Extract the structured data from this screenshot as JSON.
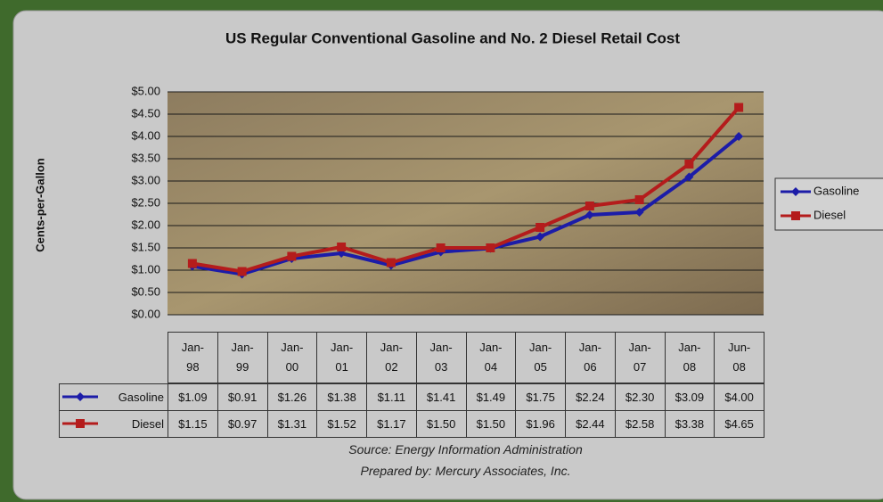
{
  "chart_data": {
    "type": "line",
    "title": "US Regular Conventional Gasoline and No. 2 Diesel Retail Cost",
    "y_label": "Cents-per-Gallon",
    "categories": [
      "Jan-98",
      "Jan-99",
      "Jan-00",
      "Jan-01",
      "Jan-02",
      "Jan-03",
      "Jan-04",
      "Jan-05",
      "Jan-06",
      "Jan-07",
      "Jan-08",
      "Jun-08"
    ],
    "series": [
      {
        "name": "Gasoline",
        "color": "#1c1ca8",
        "values": [
          1.09,
          0.91,
          1.26,
          1.38,
          1.11,
          1.41,
          1.49,
          1.75,
          2.24,
          2.3,
          3.09,
          4.0
        ],
        "value_labels": [
          "$1.09",
          "$0.91",
          "$1.26",
          "$1.38",
          "$1.11",
          "$1.41",
          "$1.49",
          "$1.75",
          "$2.24",
          "$2.30",
          "$3.09",
          "$4.00"
        ]
      },
      {
        "name": "Diesel",
        "color": "#b41c1c",
        "values": [
          1.15,
          0.97,
          1.31,
          1.52,
          1.17,
          1.5,
          1.5,
          1.96,
          2.44,
          2.58,
          3.38,
          4.65
        ],
        "value_labels": [
          "$1.15",
          "$0.97",
          "$1.31",
          "$1.52",
          "$1.17",
          "$1.50",
          "$1.50",
          "$1.96",
          "$2.44",
          "$2.58",
          "$3.38",
          "$4.65"
        ]
      }
    ],
    "ylim": [
      0,
      5
    ],
    "yticks": [
      {
        "value": 0,
        "label": "$0.00"
      },
      {
        "value": 0.5,
        "label": "$0.50"
      },
      {
        "value": 1,
        "label": "$1.00"
      },
      {
        "value": 1.5,
        "label": "$1.50"
      },
      {
        "value": 2,
        "label": "$2.00"
      },
      {
        "value": 2.5,
        "label": "$2.50"
      },
      {
        "value": 3,
        "label": "$3.00"
      },
      {
        "value": 3.5,
        "label": "$3.50"
      },
      {
        "value": 4,
        "label": "$4.00"
      },
      {
        "value": 4.5,
        "label": "$4.50"
      },
      {
        "value": 5,
        "label": "$5.00"
      }
    ],
    "grid": true,
    "legend": "right",
    "notes": [
      "Source: Energy Information Administration",
      "Prepared by: Mercury Associates, Inc."
    ]
  }
}
